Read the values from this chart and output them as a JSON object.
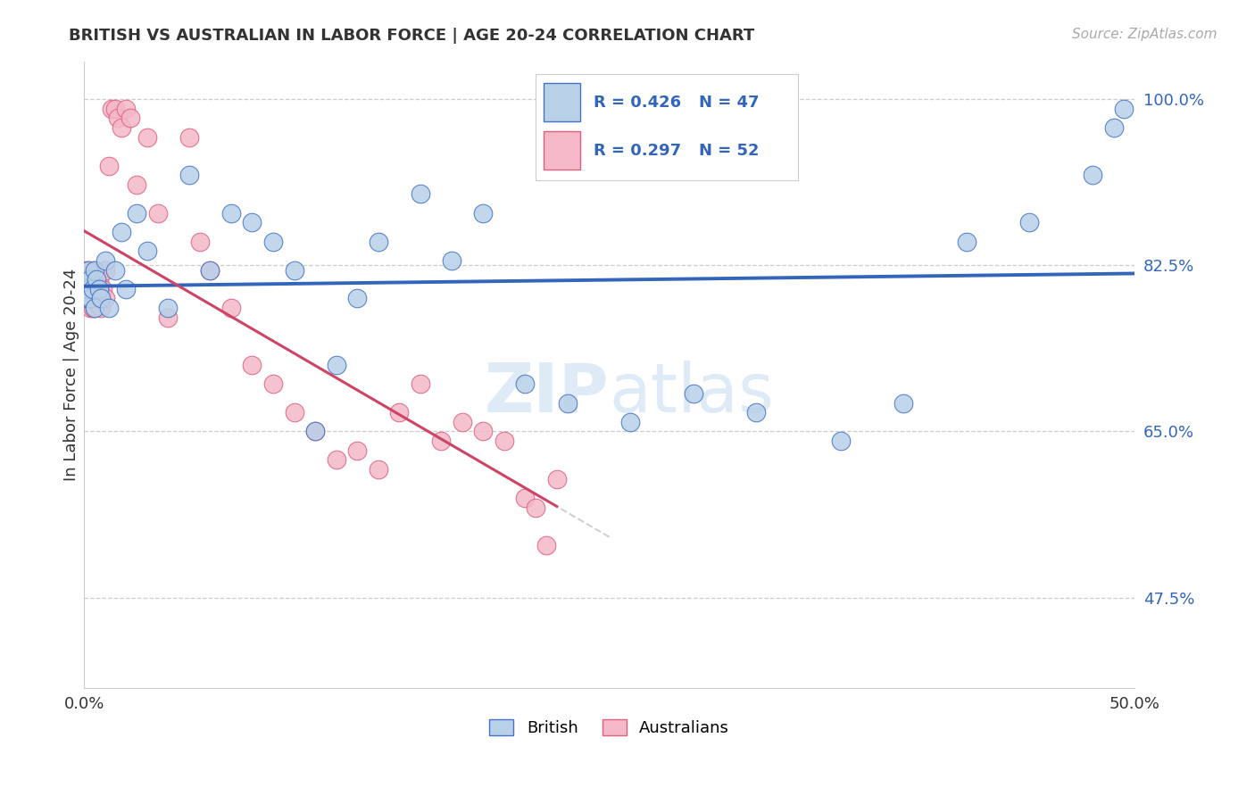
{
  "title": "BRITISH VS AUSTRALIAN IN LABOR FORCE | AGE 20-24 CORRELATION CHART",
  "source": "Source: ZipAtlas.com",
  "ylabel": "In Labor Force | Age 20-24",
  "xlim": [
    0.0,
    0.5
  ],
  "ylim": [
    0.38,
    1.04
  ],
  "xticks": [
    0.0,
    0.1,
    0.2,
    0.3,
    0.4,
    0.5
  ],
  "xticklabels": [
    "0.0%",
    "",
    "",
    "",
    "",
    "50.0%"
  ],
  "yticks": [
    0.475,
    0.65,
    0.825,
    1.0
  ],
  "yticklabels": [
    "47.5%",
    "65.0%",
    "82.5%",
    "100.0%"
  ],
  "blue_fill": "#b8d0e8",
  "blue_edge": "#4472c4",
  "pink_fill": "#f4b8c8",
  "pink_edge": "#e06080",
  "blue_line": "#3366bb",
  "pink_line": "#cc4466",
  "ref_line": "#cccccc",
  "grid_color": "#cccccc",
  "watermark_color": "#c8ddf0",
  "legend_r_blue": "R = 0.426",
  "legend_n_blue": "N = 47",
  "legend_r_pink": "R = 0.297",
  "legend_n_pink": "N = 52",
  "british_x": [
    0.001,
    0.001,
    0.001,
    0.002,
    0.002,
    0.002,
    0.003,
    0.003,
    0.004,
    0.005,
    0.005,
    0.006,
    0.007,
    0.008,
    0.01,
    0.012,
    0.015,
    0.018,
    0.02,
    0.025,
    0.03,
    0.04,
    0.05,
    0.06,
    0.07,
    0.08,
    0.09,
    0.1,
    0.11,
    0.12,
    0.13,
    0.14,
    0.16,
    0.175,
    0.19,
    0.21,
    0.23,
    0.26,
    0.29,
    0.32,
    0.36,
    0.39,
    0.42,
    0.45,
    0.48,
    0.49,
    0.495
  ],
  "british_y": [
    0.79,
    0.8,
    0.81,
    0.79,
    0.8,
    0.82,
    0.79,
    0.81,
    0.8,
    0.78,
    0.82,
    0.81,
    0.8,
    0.79,
    0.83,
    0.78,
    0.82,
    0.86,
    0.8,
    0.88,
    0.84,
    0.78,
    0.92,
    0.82,
    0.88,
    0.87,
    0.85,
    0.82,
    0.65,
    0.72,
    0.79,
    0.85,
    0.9,
    0.83,
    0.88,
    0.7,
    0.68,
    0.66,
    0.69,
    0.67,
    0.64,
    0.68,
    0.85,
    0.87,
    0.92,
    0.97,
    0.99
  ],
  "australian_x": [
    0.001,
    0.001,
    0.001,
    0.001,
    0.002,
    0.002,
    0.002,
    0.003,
    0.003,
    0.004,
    0.004,
    0.005,
    0.005,
    0.006,
    0.007,
    0.007,
    0.008,
    0.009,
    0.01,
    0.01,
    0.012,
    0.013,
    0.015,
    0.016,
    0.018,
    0.02,
    0.022,
    0.025,
    0.03,
    0.035,
    0.04,
    0.05,
    0.055,
    0.06,
    0.07,
    0.08,
    0.09,
    0.1,
    0.11,
    0.12,
    0.13,
    0.14,
    0.15,
    0.16,
    0.17,
    0.18,
    0.19,
    0.2,
    0.21,
    0.215,
    0.22,
    0.225
  ],
  "australian_y": [
    0.79,
    0.8,
    0.81,
    0.82,
    0.79,
    0.8,
    0.82,
    0.78,
    0.8,
    0.78,
    0.82,
    0.78,
    0.8,
    0.79,
    0.8,
    0.81,
    0.78,
    0.8,
    0.79,
    0.82,
    0.93,
    0.99,
    0.99,
    0.98,
    0.97,
    0.99,
    0.98,
    0.91,
    0.96,
    0.88,
    0.77,
    0.96,
    0.85,
    0.82,
    0.78,
    0.72,
    0.7,
    0.67,
    0.65,
    0.62,
    0.63,
    0.61,
    0.67,
    0.7,
    0.64,
    0.66,
    0.65,
    0.64,
    0.58,
    0.57,
    0.53,
    0.6
  ]
}
